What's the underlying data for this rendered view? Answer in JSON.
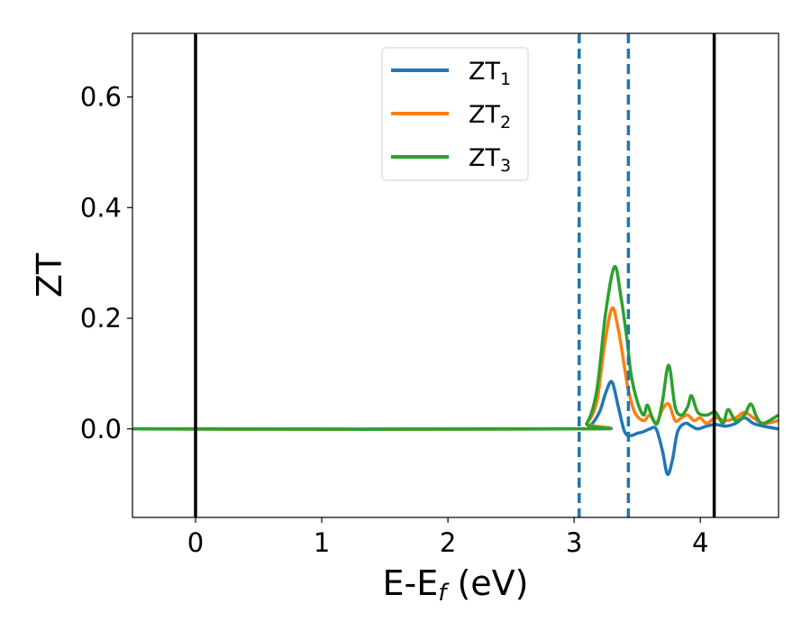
{
  "chart_data": {
    "type": "line",
    "xlabel": "E-E",
    "xlabel_sub": "f",
    "xlabel_unit": " (eV)",
    "ylabel": "ZT",
    "xlim": [
      -0.5,
      4.62
    ],
    "ylim": [
      -0.16,
      0.715
    ],
    "xticks": [
      0,
      1,
      2,
      3,
      4
    ],
    "xtick_labels": [
      "0",
      "1",
      "2",
      "3",
      "4"
    ],
    "yticks": [
      0.0,
      0.2,
      0.4,
      0.6
    ],
    "ytick_labels": [
      "0.0",
      "0.2",
      "0.4",
      "0.6"
    ],
    "grid": false,
    "legend_position": "top-center",
    "vlines_solid": [
      0.0,
      4.11
    ],
    "vlines_dashed": [
      3.04,
      3.43
    ],
    "series": [
      {
        "name": "ZT",
        "sub": "1",
        "color": "#1f77b4",
        "x": [
          -0.5,
          3.0,
          3.12,
          3.2,
          3.25,
          3.3,
          3.35,
          3.4,
          3.45,
          3.5,
          3.55,
          3.6,
          3.65,
          3.7,
          3.74,
          3.78,
          3.82,
          3.88,
          3.93,
          3.98,
          4.05,
          4.12,
          4.2,
          4.28,
          4.35,
          4.42,
          4.5,
          4.62
        ],
        "y": [
          0.0,
          0.0,
          0.005,
          0.03,
          0.065,
          0.085,
          0.04,
          -0.005,
          -0.012,
          -0.008,
          -0.005,
          0.0,
          0.0,
          -0.04,
          -0.082,
          -0.055,
          -0.005,
          0.01,
          0.005,
          0.0,
          0.005,
          0.008,
          0.005,
          0.01,
          0.02,
          0.01,
          0.005,
          0.0
        ]
      },
      {
        "name": "ZT",
        "sub": "2",
        "color": "#ff7f0e",
        "x": [
          -0.5,
          3.0,
          3.1,
          3.18,
          3.24,
          3.3,
          3.35,
          3.4,
          3.43,
          3.48,
          3.55,
          3.6,
          3.65,
          3.7,
          3.75,
          3.8,
          3.85,
          3.9,
          3.95,
          4.0,
          4.05,
          4.12,
          4.2,
          4.28,
          4.35,
          4.42,
          4.5,
          4.62
        ],
        "y": [
          0.0,
          0.0,
          0.01,
          0.05,
          0.15,
          0.218,
          0.18,
          0.11,
          0.07,
          0.03,
          0.015,
          0.025,
          0.01,
          0.035,
          0.045,
          0.015,
          0.02,
          0.025,
          0.015,
          0.02,
          0.01,
          0.02,
          0.015,
          0.02,
          0.03,
          0.02,
          0.01,
          0.015
        ]
      },
      {
        "name": "ZT",
        "sub": "3",
        "color": "#2ca02c",
        "x": [
          -0.5,
          3.0,
          3.1,
          3.18,
          3.25,
          3.32,
          3.37,
          3.42,
          3.45,
          3.5,
          3.55,
          3.58,
          3.62,
          3.66,
          3.7,
          3.75,
          3.8,
          3.85,
          3.9,
          3.93,
          3.98,
          4.05,
          4.12,
          4.18,
          4.22,
          4.28,
          4.35,
          4.4,
          4.45,
          4.5,
          4.62
        ],
        "y": [
          0.0,
          0.0,
          0.01,
          0.07,
          0.21,
          0.293,
          0.24,
          0.16,
          0.1,
          0.05,
          0.025,
          0.043,
          0.02,
          0.01,
          0.05,
          0.115,
          0.04,
          0.025,
          0.04,
          0.06,
          0.03,
          0.025,
          0.03,
          0.01,
          0.035,
          0.015,
          0.025,
          0.045,
          0.02,
          0.01,
          0.025
        ]
      }
    ]
  }
}
